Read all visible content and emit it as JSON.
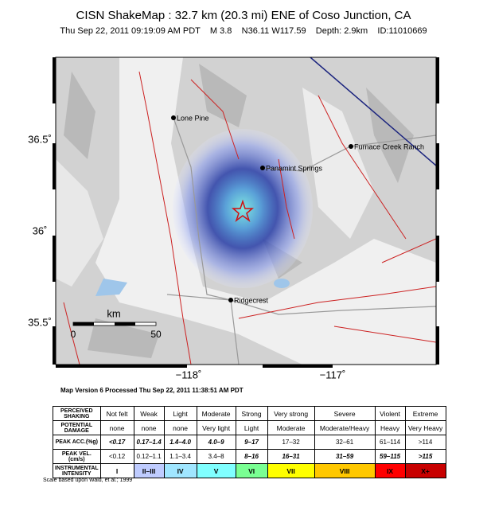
{
  "header": {
    "title": "CISN ShakeMap : 32.7 km (20.3 mi) ENE of Coso Junction, CA",
    "subtitle": "Thu Sep 22, 2011 09:19:09 AM PDT    M 3.8    N36.11 W117.59    Depth: 2.9km    ID:11010669"
  },
  "map": {
    "places": [
      {
        "label": "Lone Pine"
      },
      {
        "label": "Panamint Springs"
      },
      {
        "label": "Furnace Creek Ranch"
      },
      {
        "label": "Ridgecrest"
      }
    ],
    "lat_labels": [
      "36.5˚",
      "36˚",
      "35.5˚"
    ],
    "lon_labels": [
      "−118˚",
      "−117˚"
    ],
    "scale": {
      "unit": "km",
      "labels": [
        "0",
        "50"
      ]
    }
  },
  "processed": "Map Version 6 Processed Thu Sep 22, 2011 11:38:51 AM PDT",
  "legend": {
    "row_labels": [
      "PERCEIVED SHAKING",
      "POTENTIAL DAMAGE",
      "PEAK ACC.(%g)",
      "PEAK VEL.(cm/s)",
      "INSTRUMENTAL INTENSITY"
    ],
    "rows": [
      [
        "Not felt",
        "Weak",
        "Light",
        "Moderate",
        "Strong",
        "Very strong",
        "Severe",
        "Violent",
        "Extreme"
      ],
      [
        "none",
        "none",
        "none",
        "Very light",
        "Light",
        "Moderate",
        "Moderate/Heavy",
        "Heavy",
        "Very Heavy"
      ],
      [
        "<0.17",
        "0.17–1.4",
        "1.4–4.0",
        "4.0–9",
        "9–17",
        "17–32",
        "32–61",
        "61–114",
        ">114"
      ],
      [
        "<0.12",
        "0.12–1.1",
        "1.1–3.4",
        "3.4–8",
        "8–16",
        "16–31",
        "31–59",
        "59–115",
        ">115"
      ],
      [
        "I",
        "II–III",
        "IV",
        "V",
        "VI",
        "VII",
        "VIII",
        "IX",
        "X+"
      ]
    ]
  },
  "footnote": "Scale based upon Wald, et al.; 1999"
}
